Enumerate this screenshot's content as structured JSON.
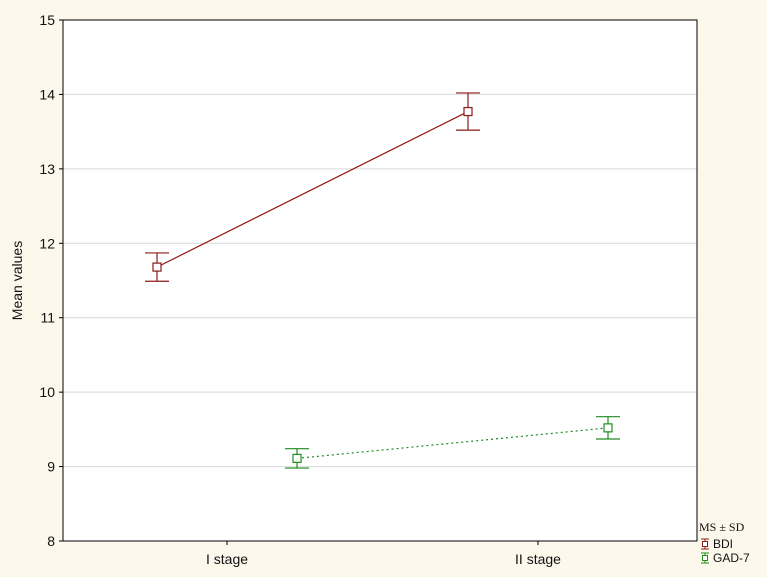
{
  "chart_data": {
    "type": "line",
    "ylabel": "Mean values",
    "xlabel": "",
    "categories": [
      "I stage",
      "II stage"
    ],
    "ylim": [
      8,
      15
    ],
    "yticks": [
      8,
      9,
      10,
      11,
      12,
      13,
      14,
      15
    ],
    "grid": "horizontal",
    "legend_title": "MS ± SD",
    "legend_position": "bottom-right, outside plot",
    "series": [
      {
        "name": "BDI",
        "color": "#8b1a1a",
        "line_style": "solid",
        "marker": "open-square",
        "values": [
          11.68,
          13.77
        ],
        "sd": [
          0.19,
          0.25
        ],
        "x_offset": -1
      },
      {
        "name": "GAD-7",
        "color": "#1e8c1e",
        "line_style": "dotted",
        "marker": "open-square",
        "values": [
          9.11,
          9.52
        ],
        "sd": [
          0.13,
          0.15
        ],
        "x_offset": 1
      }
    ]
  }
}
